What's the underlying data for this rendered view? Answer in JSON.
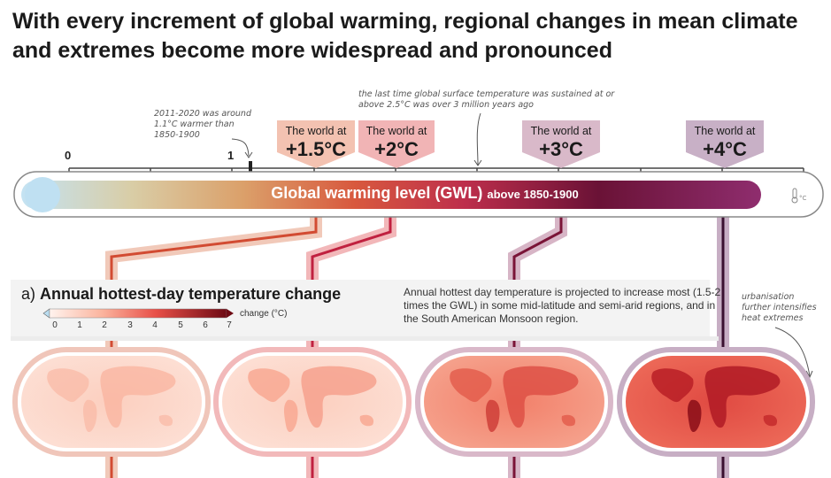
{
  "title": "With every increment of global warming, regional changes in mean climate and extremes become more widespread and pronounced",
  "axis": {
    "zero": "0",
    "one": "1"
  },
  "annotations": {
    "period_note": "2011-2020 was around 1.1°C warmer than 1850-1900",
    "past_note": "the last time global surface temperature was sustained at or above 2.5°C was over 3 million years ago",
    "urban_note": "urbanisation further intensifies heat extremes"
  },
  "thermometer": {
    "label_main": "Global warming level (GWL)",
    "label_sub": "above 1850-1900",
    "unit_icon": "thermometer-celsius-icon",
    "colors": [
      "#bfe0f2",
      "#dcc79a",
      "#d96a3c",
      "#c0304a",
      "#6b1238",
      "#8f2c6c"
    ]
  },
  "worlds": [
    {
      "line1": "The world at",
      "line2": "+1.5°C",
      "color": "#f3c2b1"
    },
    {
      "line1": "The world at",
      "line2": "+2°C",
      "color": "#f0b4b4"
    },
    {
      "line1": "The world at",
      "line2": "+3°C",
      "color": "#d8b8c8"
    },
    {
      "line1": "The world at",
      "line2": "+4°C",
      "color": "#c8b0c6"
    }
  ],
  "panel": {
    "letter": "a)",
    "title": "Annual hottest-day temperature change",
    "description": "Annual hottest day temperature is projected to increase most (1.5-2 times the GWL) in some mid-latitude and semi-arid regions, and in the South American Monsoon region.",
    "scale_title": "change (°C)",
    "scale_ticks": [
      "0",
      "1",
      "2",
      "3",
      "4",
      "5",
      "6",
      "7"
    ],
    "scale_colors": [
      "#fff1ec",
      "#fdd5c5",
      "#fbb09a",
      "#f6836b",
      "#e8504a",
      "#cc2a30",
      "#a3121f",
      "#6e0a14"
    ]
  }
}
